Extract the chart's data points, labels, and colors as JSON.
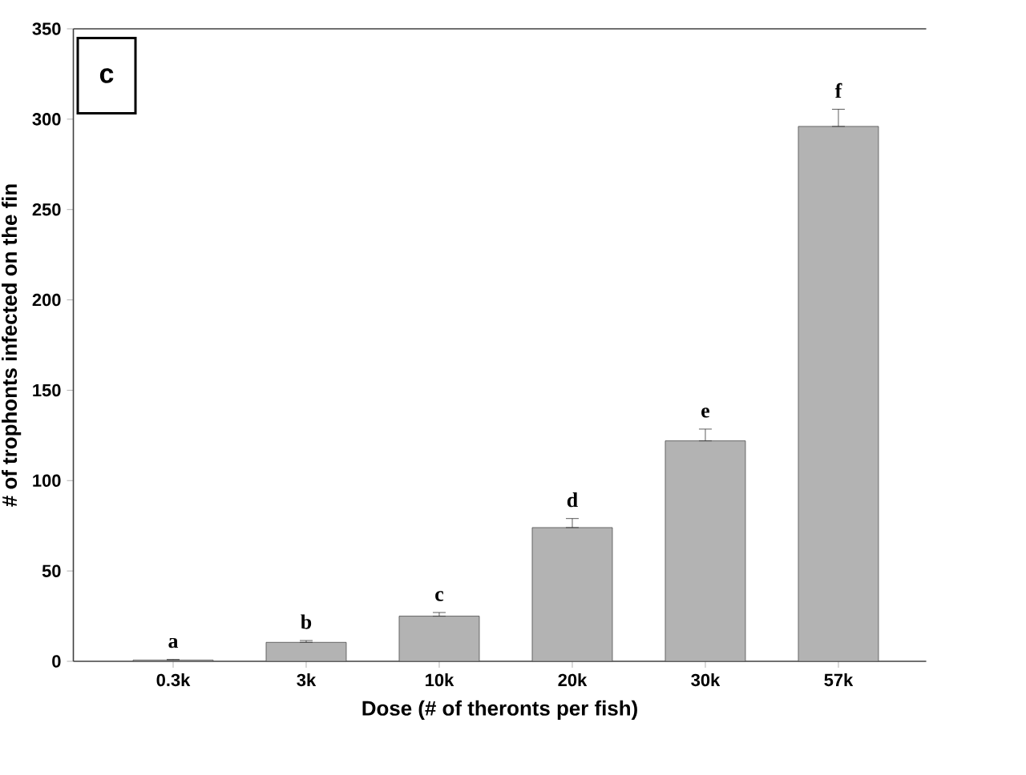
{
  "chart_data": {
    "type": "bar",
    "xlabel": "Dose (# of theronts per fish)",
    "ylabel": "# of trophonts infected on the fin",
    "annotations": [
      "c"
    ],
    "categories": [
      "0.3k",
      "3k",
      "10k",
      "20k",
      "30k",
      "57k"
    ],
    "values": [
      0.7,
      10.5,
      25,
      74,
      122,
      296
    ],
    "errors": [
      [
        0.7,
        1
      ],
      [
        10.5,
        11.5
      ],
      [
        25,
        27
      ],
      [
        74,
        79
      ],
      [
        122,
        128.5
      ],
      [
        296,
        305.5
      ]
    ],
    "value_labels": [
      "a",
      "b",
      "c",
      "d",
      "e",
      "f"
    ],
    "color": "#b3b3b3",
    "ylim": [
      0,
      350
    ],
    "yticks": [
      0,
      50,
      100,
      150,
      200,
      250,
      300,
      350
    ]
  }
}
